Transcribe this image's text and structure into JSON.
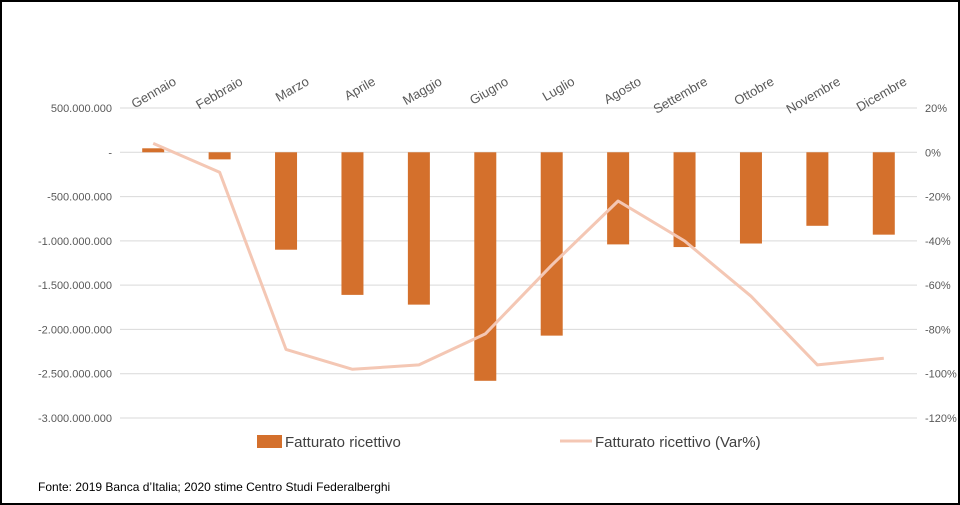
{
  "chart_data": {
    "type": "bar",
    "categories": [
      "Gennaio",
      "Febbraio",
      "Marzo",
      "Aprile",
      "Maggio",
      "Giugno",
      "Luglio",
      "Agosto",
      "Settembre",
      "Ottobre",
      "Novembre",
      "Dicembre"
    ],
    "series": [
      {
        "name": "Fatturato ricettivo",
        "type": "bar",
        "axis": "left",
        "color": "#D4702C",
        "values": [
          45000000,
          -80000000,
          -1100000000,
          -1610000000,
          -1720000000,
          -2580000000,
          -2070000000,
          -1040000000,
          -1070000000,
          -1030000000,
          -830000000,
          -930000000
        ]
      },
      {
        "name": "Fatturato ricettivo (Var%)",
        "type": "line",
        "axis": "right",
        "color": "#F4C7B4",
        "values": [
          4,
          -9,
          -89,
          -98,
          -96,
          -82,
          -51,
          -22,
          -40,
          -65,
          -96,
          -93
        ]
      }
    ],
    "y_left": {
      "ylim": [
        -3000000000,
        500000000
      ],
      "ticks": [
        500000000,
        0,
        -500000000,
        -1000000000,
        -1500000000,
        -2000000000,
        -2500000000,
        -3000000000
      ],
      "tick_labels": [
        "500.000.000",
        "-",
        "-500.000.000",
        "-1.000.000.000",
        "-1.500.000.000",
        "-2.000.000.000",
        "-2.500.000.000",
        "-3.000.000.000"
      ]
    },
    "y_right": {
      "ylim": [
        -120,
        20
      ],
      "ticks": [
        20,
        0,
        -20,
        -40,
        -60,
        -80,
        -100,
        -120
      ],
      "tick_labels": [
        "20%",
        "0%",
        "-20%",
        "-40%",
        "-60%",
        "-80%",
        "-100%",
        "-120%"
      ]
    },
    "grid": true,
    "legend_position": "bottom"
  },
  "source_note": "Fonte: 2019 Banca d’Italia; 2020 stime Centro Studi Federalberghi"
}
